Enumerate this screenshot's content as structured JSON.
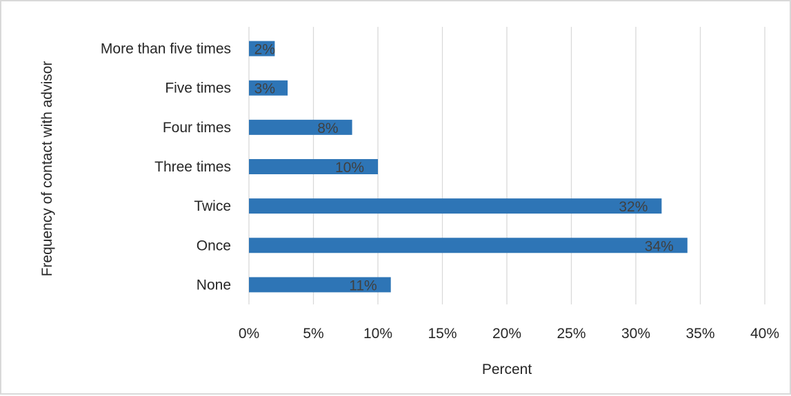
{
  "chart_data": {
    "type": "bar",
    "orientation": "horizontal",
    "categories": [
      "More than five times",
      "Five times",
      "Four times",
      "Three times",
      "Twice",
      "Once",
      "None"
    ],
    "values": [
      2,
      3,
      8,
      10,
      32,
      34,
      11
    ],
    "data_labels": [
      "2%",
      "3%",
      "8%",
      "10%",
      "32%",
      "34%",
      "11%"
    ],
    "x_ticks": [
      "0%",
      "5%",
      "10%",
      "15%",
      "20%",
      "25%",
      "30%",
      "35%",
      "40%"
    ],
    "xlim": [
      0,
      40
    ],
    "xlabel": "Percent",
    "ylabel": "Frequency of contact with advisor",
    "bar_color": "#2e75b6",
    "grid": "vertical",
    "legend": "none"
  }
}
